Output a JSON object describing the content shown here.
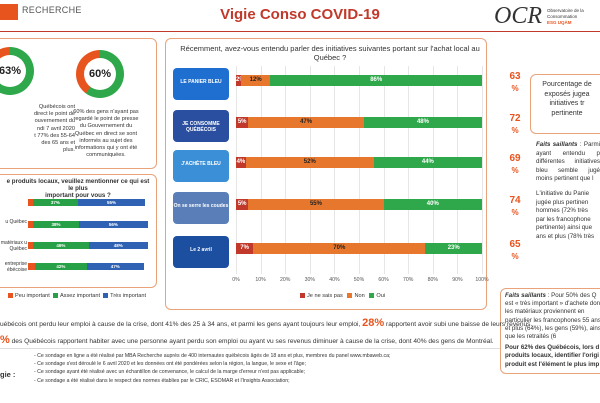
{
  "header": {
    "brand": "RECHERCHE",
    "title": "Vigie Conso COVID-19",
    "ocr_logo": "OCR",
    "ocr_sub1": "Observatoire de la Consommation",
    "ocr_sub2": "ESG UQÀM"
  },
  "donuts": [
    {
      "pct_label": "63%",
      "value": 63,
      "lines": [
        "Québécois ont",
        "direct le point de",
        "ouvernement du",
        "ndi 7 avril 2020",
        "t 77% des 55-64",
        "des 65 ans et",
        "plus."
      ]
    },
    {
      "pct_label": "60%",
      "value": 60,
      "lines": [
        "60% des gens n'ayant pas",
        "regardé le point de presse",
        "du Gouvernement du",
        "Québec en direct se sont",
        "informés au sujet des",
        "informations qui y ont été",
        "communiquées."
      ]
    }
  ],
  "left_chart": {
    "question": [
      "e produits locaux, veuillez mentionner ce qui est le plus",
      "important pour vous ?"
    ],
    "rows": [
      {
        "label": "",
        "values": [
          4,
          37,
          55
        ],
        "labels": [
          "",
          "37%",
          "55%"
        ]
      },
      {
        "label": "u Québec",
        "values": [
          4,
          38,
          56
        ],
        "labels": [
          "",
          "38%",
          "56%"
        ]
      },
      {
        "label": "matériaux",
        "label2": "u Québec",
        "values": [
          4,
          46,
          48
        ],
        "labels": [
          "",
          "46%",
          "48%"
        ]
      },
      {
        "label": "entreprise",
        "label2": "ébécoise",
        "values": [
          6,
          42,
          47
        ],
        "labels": [
          "",
          "42%",
          "47%"
        ]
      }
    ],
    "legend": [
      "Peu important",
      "Assez important",
      "Très important"
    ],
    "colors": [
      "#e8541e",
      "#27a048",
      "#2f62b3"
    ]
  },
  "main_chart": {
    "question": "Récemment, avez-vous entendu parler des initiatives suivantes portant sur l'achat local au Québec ?",
    "colors": {
      "nsp": "#c0392b",
      "non": "#e8772e",
      "oui": "#2ea84a"
    },
    "rows": [
      {
        "icon": "panier-bleu-icon",
        "icon_text": "LE PANIER BLEU",
        "icon_bg": "#1e6fd0",
        "nsp": 2,
        "non": 12,
        "oui": 86,
        "l": [
          "2%",
          "12%",
          "86%"
        ],
        "big": "63",
        "pct": "%"
      },
      {
        "icon": "je-consomme-quebecois-icon",
        "icon_text": "JE CONSOMME QUÉBÉCOIS",
        "icon_bg": "#2a4fa0",
        "nsp": 5,
        "non": 47,
        "oui": 48,
        "l": [
          "5%",
          "47%",
          "48%"
        ],
        "big": "72",
        "pct": "%"
      },
      {
        "icon": "jachete-bleu-icon",
        "icon_text": "J'ACHÈTE BLEU",
        "icon_bg": "#3b8fd6",
        "nsp": 4,
        "non": 52,
        "oui": 44,
        "l": [
          "4%",
          "52%",
          "44%"
        ],
        "big": "69",
        "pct": "%"
      },
      {
        "icon": "on-se-serre-les-coudes-icon",
        "icon_text": "On se serre les coudes",
        "icon_bg": "#5a7fb8",
        "nsp": 5,
        "non": 55,
        "oui": 40,
        "l": [
          "5%",
          "55%",
          "40%"
        ],
        "big": "74",
        "pct": "%"
      },
      {
        "icon": "le-2-avril-icon",
        "icon_text": "Le 2 avril",
        "icon_bg": "#1d4fa0",
        "nsp": 7,
        "non": 70,
        "oui": 23,
        "l": [
          "7%",
          "70%",
          "23%"
        ],
        "big": "65",
        "pct": "%"
      }
    ],
    "xticks": [
      "0%",
      "10%",
      "20%",
      "30%",
      "40%",
      "50%",
      "60%",
      "70%",
      "80%",
      "90%",
      "100%"
    ],
    "legend": [
      "Je ne sais pas",
      "Non",
      "Oui"
    ]
  },
  "right_panel": {
    "lines": [
      "Pourcentage de",
      "exposés jugea",
      "initiatives tr",
      "pertinente"
    ],
    "saillants_label": "Faits saillants",
    "saillants": [
      ": Parmi",
      "ayant  entendu  p",
      "différentes  initiatives",
      "bleu  semble  jugé",
      "moins pertinent que l"
    ],
    "saillants2": [
      "L'initiative  du  Panie",
      "jugée  plus  pertinen",
      "hommes  (72%  très",
      "par  les  francophone",
      "pertinente)  ainsi  que",
      "ans et plus (78% très"
    ]
  },
  "right_box": {
    "label": "Faits saillants",
    "lines": [
      " : Pour 50% des Q",
      "est « très important » d'achete",
      "dont les matériaux proviennent",
      "en particulier les francophones",
      "55 ans et plus (64%), les gens",
      "(59%), ainsi que les retraités (6"
    ],
    "bold": [
      "Pour 62% des Québécois, lors d",
      "produits locaux, identifier l'origi",
      "produit est l'élément le plus imp"
    ]
  },
  "bottom": {
    "line1a": "uébécois ont perdu leur emploi à cause de la crise, dont 41% des 25 à 34 ans, et parmi les gens ayant toujours leur emploi,",
    "line1pct": "28%",
    "line1b": "rapportent avoir subi une baisse de leurs revenus.",
    "line2pct": "%",
    "line2": "des Québécois rapportent habiter avec une personne ayant perdu son emploi ou ayant vu ses revenus diminuer à cause de la crise, dont 40% des gens de Montréal.",
    "method_label": "gie :",
    "notes": [
      "Ce sondage en ligne a été réalisé par MBA Recherche auprès de 400 internautes québécois âgés de 18 ans et plus, membres du panel www.mbaweb.ca;",
      "Ce sondage s'est déroulé le 6 avril 2020 et les données ont été pondérées selon la région, la langue, le sexe et l'âge;",
      "Ce sondage ayant été réalisé avec un échantillon de convenance, le calcul de la marge d'erreur n'est pas applicable;",
      "Ce sondage a été réalisé dans le respect des normes établies par le CRIC, ESOMAR et l'Insights Association;"
    ]
  }
}
